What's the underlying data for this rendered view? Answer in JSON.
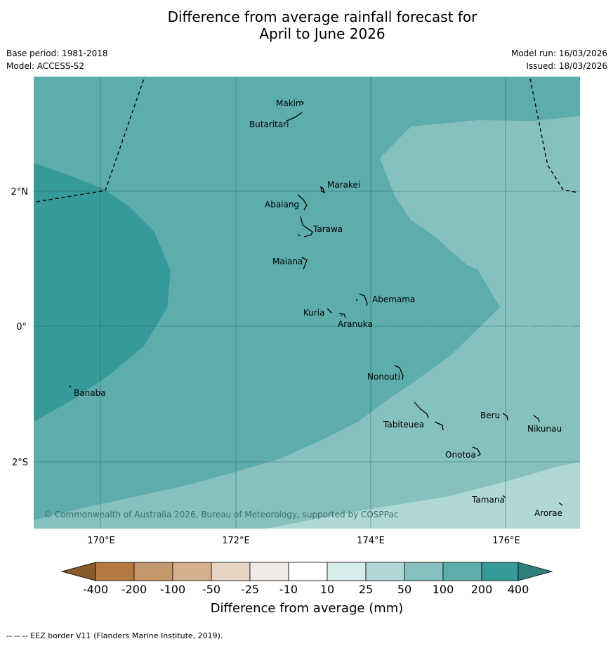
{
  "title": {
    "line1": "Difference from average rainfall forecast for",
    "line2": "April to June 2026"
  },
  "meta": {
    "base_period": "Base period: 1981-2018",
    "model": "Model: ACCESS-S2",
    "model_run": "Model run: 16/03/2026",
    "issued": "Issued: 18/03/2026"
  },
  "map": {
    "lon_labels": [
      "170°E",
      "172°E",
      "174°E",
      "176°E"
    ],
    "lat_labels": [
      "2°N",
      "0°",
      "2°S"
    ],
    "copyright": "© Commonwealth of Australia 2026, Bureau of Meteorology, supported by COSPPac",
    "islands": [
      "Makin",
      "Butaritari",
      "Marakei",
      "Abaiang",
      "Tarawa",
      "Maiana",
      "Abemama",
      "Kuria",
      "Aranuka",
      "Nonouti",
      "Banaba",
      "Beru",
      "Tabiteuea",
      "Nikunau",
      "Onotoa",
      "Tamana",
      "Arorae"
    ]
  },
  "legend": {
    "title": "Difference from average (mm)",
    "ticks": [
      "-400",
      "-200",
      "-100",
      "-50",
      "-25",
      "-10",
      "10",
      "25",
      "50",
      "100",
      "200",
      "400"
    ],
    "colors": {
      "below_400": "#8a5a2b",
      "neg400_neg200": "#b27a40",
      "neg200_neg100": "#c4976c",
      "neg100_neg50": "#d4b08f",
      "neg50_neg25": "#e6d4c3",
      "neg25_neg10": "#efebe8",
      "neg10_10": "#ffffff",
      "p10_25": "#d9ecec",
      "p25_50": "#b0d8d7",
      "p50_100": "#86c0bf",
      "p100_200": "#5dadad",
      "p200_400": "#359a99",
      "above_400": "#2e7f7e"
    }
  },
  "footer": "--  --  -- EEZ border V11 (Flanders Marine Institute, 2019)."
}
